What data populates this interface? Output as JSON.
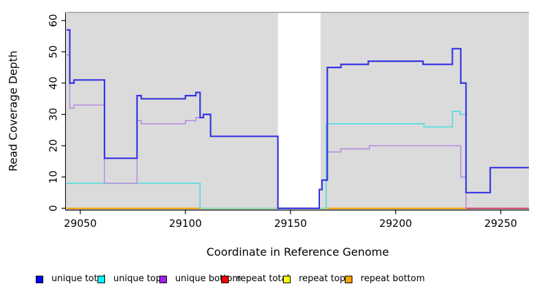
{
  "chart_data": {
    "type": "line",
    "subtype": "step-coverage-plot",
    "title": "",
    "xlabel": "Coordinate in Reference Genome",
    "ylabel": "Read Coverage Depth",
    "xlim": [
      29043.5,
      29263.4
    ],
    "ylim": [
      0,
      62.6
    ],
    "x_ticks": [
      29050,
      29100,
      29150,
      29200,
      29250
    ],
    "x_tick_labels": [
      "29050",
      "29100",
      "29150",
      "29200",
      "29250"
    ],
    "y_ticks": [
      0,
      10,
      20,
      30,
      40,
      50,
      60
    ],
    "y_tick_labels": [
      "0",
      "10",
      "20",
      "30",
      "40",
      "50",
      "60"
    ],
    "grid": false,
    "plot_bg": "#DBDBDB",
    "gap_region": {
      "x0": 29144,
      "x1": 29164.3,
      "color": "#FFFFFF"
    },
    "legend_position": "bottom",
    "series": [
      {
        "name": "unique total",
        "color": "#0000FF",
        "line_color": "#3434E2",
        "line_width": 2.2,
        "steps": [
          [
            29043.5,
            57
          ],
          [
            29045,
            40
          ],
          [
            29047,
            41
          ],
          [
            29061.5,
            16
          ],
          [
            29077,
            36
          ],
          [
            29079,
            35
          ],
          [
            29100,
            36
          ],
          [
            29105,
            37
          ],
          [
            29107,
            29
          ],
          [
            29108.6,
            30
          ],
          [
            29112,
            23
          ],
          [
            29144,
            0
          ],
          [
            29163.7,
            6
          ],
          [
            29165,
            9
          ],
          [
            29167.5,
            45
          ],
          [
            29174,
            46
          ],
          [
            29187,
            47
          ],
          [
            29213,
            46
          ],
          [
            29227,
            51
          ],
          [
            29231,
            40
          ],
          [
            29233.5,
            5
          ],
          [
            29245,
            13
          ],
          [
            29263.4,
            13
          ]
        ]
      },
      {
        "name": "unique top",
        "color": "#00FFFF",
        "line_color": "#4ADEDE",
        "line_width": 1.6,
        "steps": [
          [
            29043.5,
            8
          ],
          [
            29107,
            0
          ],
          [
            29167,
            27
          ],
          [
            29213.5,
            26
          ],
          [
            29227,
            31
          ],
          [
            29230.7,
            30
          ],
          [
            29233.5,
            5
          ],
          [
            29245,
            13
          ],
          [
            29263.4,
            13
          ]
        ]
      },
      {
        "name": "unique bottom",
        "color": "#A020F0",
        "line_color": "#B484E2",
        "line_width": 1.4,
        "steps": [
          [
            29043.5,
            49
          ],
          [
            29045,
            32
          ],
          [
            29047,
            33
          ],
          [
            29061.5,
            8
          ],
          [
            29077,
            28
          ],
          [
            29079,
            27
          ],
          [
            29100,
            28
          ],
          [
            29105,
            29
          ],
          [
            29108.6,
            30
          ],
          [
            29112,
            23
          ],
          [
            29144,
            0
          ],
          [
            29163.7,
            6
          ],
          [
            29165,
            9
          ],
          [
            29167.5,
            18
          ],
          [
            29174,
            19
          ],
          [
            29187.5,
            20
          ],
          [
            29231,
            10
          ],
          [
            29233.5,
            0
          ],
          [
            29263.4,
            0
          ]
        ]
      },
      {
        "name": "repeat total",
        "color": "#FF0000",
        "line_color": "#D0496E",
        "line_width": 1.6,
        "steps": [
          [
            29233.5,
            0
          ],
          [
            29263.4,
            0
          ]
        ]
      },
      {
        "name": "repeat top",
        "color": "#FFFF00",
        "line_color": "#FFFF00",
        "line_width": 1.4,
        "steps": [
          [
            29043.5,
            0
          ],
          [
            29263.4,
            0
          ]
        ]
      },
      {
        "name": "repeat bottom",
        "color": "#FFA500",
        "line_color": "#FFA500",
        "line_width": 2,
        "steps": [
          [
            29043.5,
            0
          ],
          [
            29263.4,
            0
          ]
        ]
      }
    ],
    "baseline_overlays": [
      {
        "x0": 29107,
        "x1": 29144,
        "color": "#90E0A8",
        "note": "unique top at 0 over repeat bottom"
      },
      {
        "x0": 29164.3,
        "x1": 29167.5,
        "color": "#90E0A8",
        "note": "unique top at 0 over repeat bottom"
      },
      {
        "x0": 29233.5,
        "x1": 29263.4,
        "color": "#D0496E",
        "note": "repeat total / unique bottom at 0"
      }
    ]
  }
}
